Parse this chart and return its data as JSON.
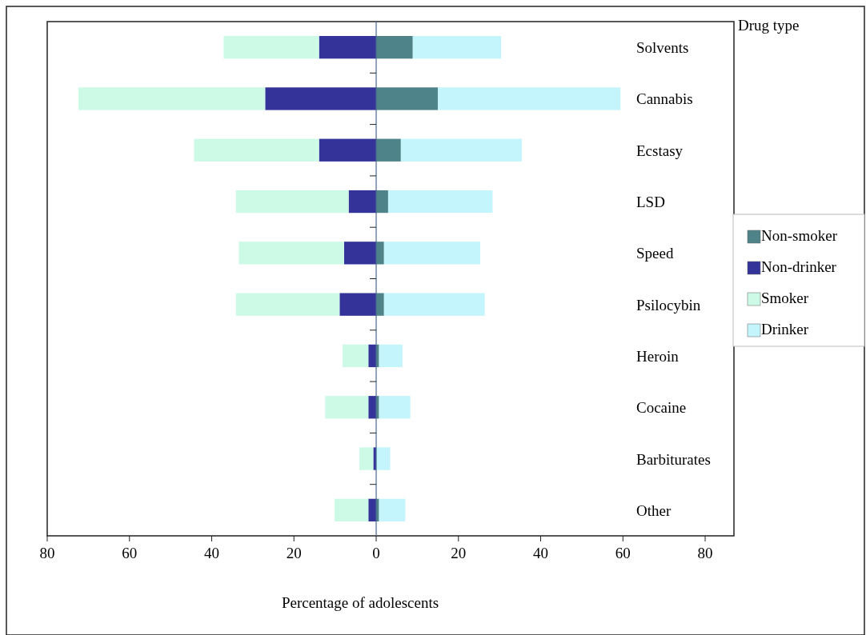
{
  "chart_data": {
    "type": "bar",
    "orientation": "horizontal",
    "stacked": true,
    "xlabel": "Percentage of adolescents",
    "legend_title": "Drug type",
    "legend": "right",
    "grid": false,
    "categories": [
      "Solvents",
      "Cannabis",
      "Ecstasy",
      "LSD",
      "Speed",
      "Psilocybin",
      "Heroin",
      "Cocaine",
      "Barbiturates",
      "Other"
    ],
    "xlim": [
      -80,
      87
    ],
    "ref_lines": [
      {
        "axis": "x",
        "value": 0,
        "color": "#4a6890"
      }
    ],
    "xticks": [
      {
        "value": -80,
        "label": "80"
      },
      {
        "value": -60,
        "label": "60"
      },
      {
        "value": -40,
        "label": "40"
      },
      {
        "value": -20,
        "label": "20"
      },
      0,
      20,
      40,
      60,
      80
    ],
    "series": [
      {
        "name": "Non-smoker",
        "color": "#4d8389",
        "values": [
          8.9,
          15.0,
          6.0,
          2.9,
          1.9,
          1.9,
          0.7,
          0.7,
          0,
          0.7
        ]
      },
      {
        "name": "Non-drinker",
        "color": "#333399",
        "values": [
          -13.9,
          -27.0,
          -13.9,
          -6.7,
          -7.8,
          -8.9,
          -1.9,
          -1.9,
          -0.7,
          -1.9
        ]
      },
      {
        "name": "Smoker",
        "color": "#ccfae6",
        "values": [
          -23.2,
          -45.4,
          -30.4,
          -27.4,
          -25.6,
          -25.2,
          -6.3,
          -10.5,
          -3.4,
          -8.2
        ]
      },
      {
        "name": "Drinker",
        "color": "#c4f4fc",
        "values": [
          21.5,
          44.4,
          29.4,
          25.4,
          23.4,
          24.5,
          5.7,
          7.6,
          3.4,
          6.4
        ]
      }
    ]
  }
}
